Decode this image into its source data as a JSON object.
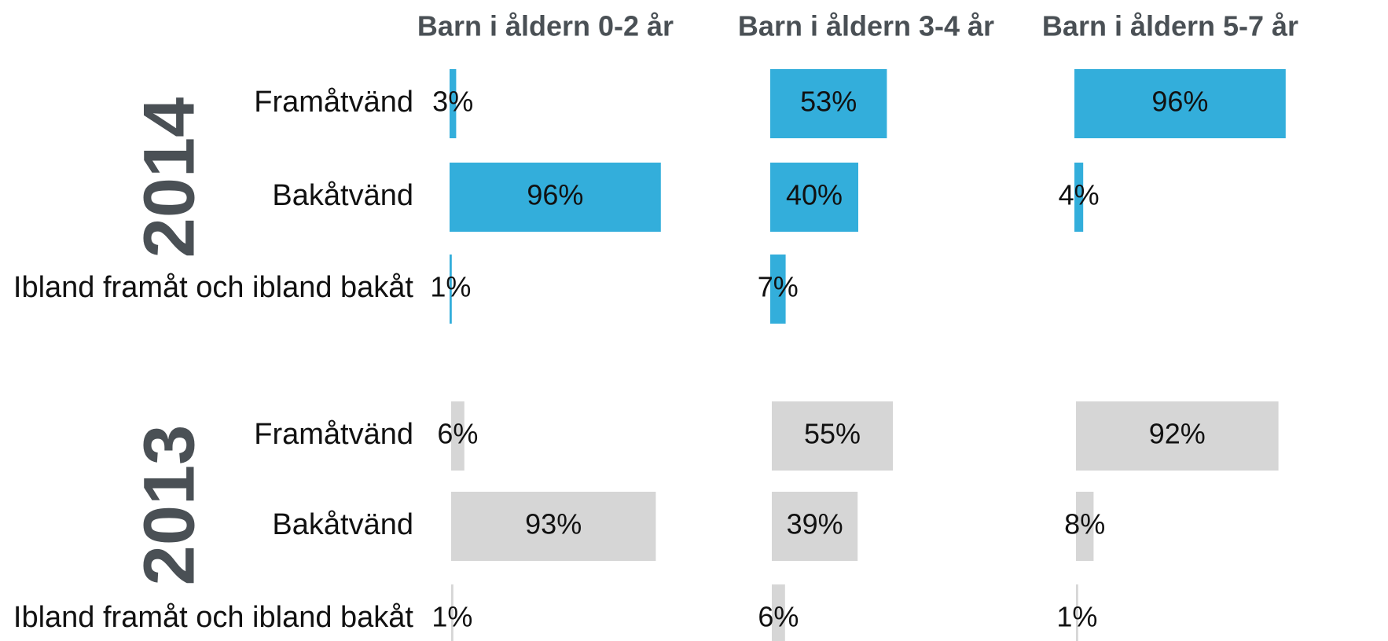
{
  "chart_data": {
    "type": "bar",
    "orientation": "horizontal",
    "panels": [
      "Barn i åldern 0-2 år",
      "Barn i åldern 3-4 år",
      "Barn i åldern 5-7 år"
    ],
    "categories": [
      "Framåtvänd",
      "Bakåtvänd",
      "Ibland framåt och ibland bakåt"
    ],
    "xlim": [
      0,
      100
    ],
    "series": [
      {
        "name": "2014",
        "color": "#33aedb",
        "values": [
          [
            3,
            96,
            1
          ],
          [
            53,
            40,
            7
          ],
          [
            96,
            4,
            null
          ]
        ],
        "value_labels": [
          [
            "3%",
            "96%",
            "1%"
          ],
          [
            "53%",
            "40%",
            "7%"
          ],
          [
            "96%",
            "4%",
            null
          ]
        ]
      },
      {
        "name": "2013",
        "color": "#d6d6d6",
        "values": [
          [
            6,
            93,
            1
          ],
          [
            55,
            39,
            6
          ],
          [
            92,
            8,
            1
          ]
        ],
        "value_labels": [
          [
            "6%",
            "93%",
            "1%"
          ],
          [
            "55%",
            "39%",
            "6%"
          ],
          [
            "92%",
            "8%",
            "1%"
          ]
        ]
      }
    ]
  }
}
